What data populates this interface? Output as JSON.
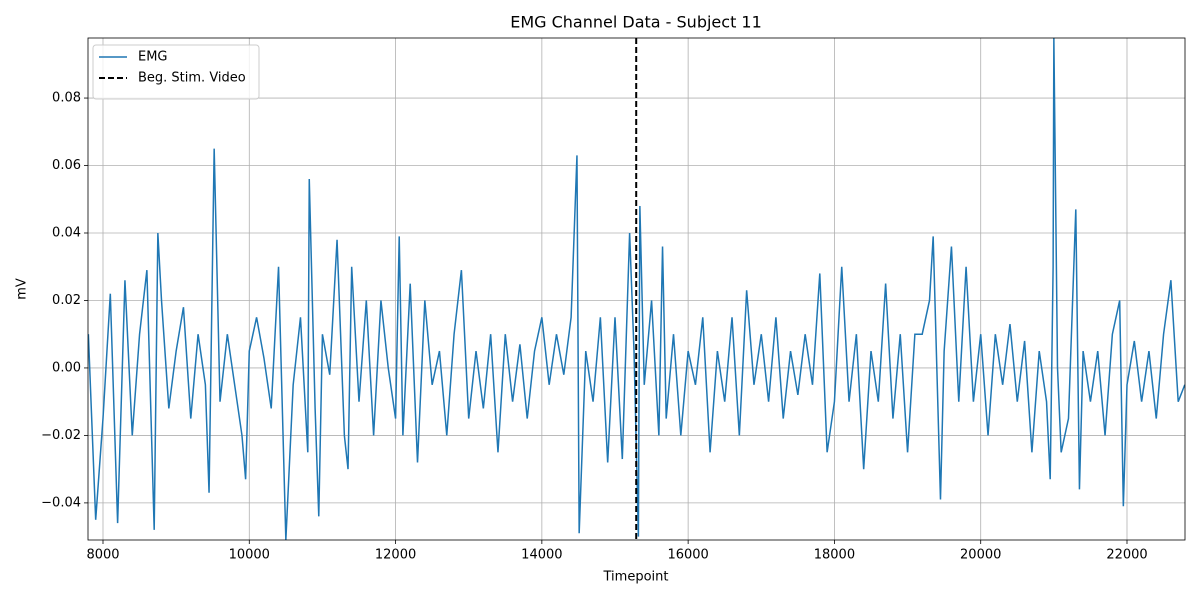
{
  "chart_data": {
    "type": "line",
    "title": "EMG Channel Data - Subject 11",
    "xlabel": "Timepoint",
    "ylabel": "mV",
    "xlim": [
      7795,
      22793
    ],
    "ylim": [
      -0.051,
      0.0978
    ],
    "xticks": [
      8000,
      10000,
      12000,
      14000,
      16000,
      18000,
      20000,
      22000
    ],
    "yticks": [
      {
        "value": -0.04,
        "label": "−0.04"
      },
      {
        "value": -0.02,
        "label": "−0.02"
      },
      {
        "value": 0,
        "label": "0.00"
      },
      0.02,
      0.04,
      0.06,
      0.08
    ],
    "grid": true,
    "legend": "upper left",
    "x": [
      7800,
      7900,
      8000,
      8100,
      8200,
      8300,
      8400,
      8500,
      8600,
      8700,
      8750,
      8800,
      8900,
      9000,
      9100,
      9200,
      9300,
      9400,
      9450,
      9520,
      9600,
      9700,
      9800,
      9900,
      9950,
      10000,
      10100,
      10200,
      10300,
      10400,
      10500,
      10600,
      10700,
      10800,
      10820,
      10900,
      10950,
      11000,
      11100,
      11200,
      11300,
      11350,
      11400,
      11500,
      11600,
      11700,
      11800,
      11900,
      12000,
      12050,
      12100,
      12200,
      12300,
      12400,
      12500,
      12600,
      12700,
      12800,
      12900,
      13000,
      13100,
      13200,
      13300,
      13400,
      13500,
      13600,
      13700,
      13800,
      13900,
      14000,
      14100,
      14200,
      14300,
      14400,
      14480,
      14510,
      14600,
      14700,
      14800,
      14900,
      15000,
      15100,
      15200,
      15260,
      15320,
      15340,
      15400,
      15500,
      15600,
      15650,
      15700,
      15800,
      15900,
      16000,
      16100,
      16200,
      16300,
      16400,
      16500,
      16600,
      16700,
      16800,
      16900,
      17000,
      17100,
      17200,
      17300,
      17400,
      17500,
      17600,
      17700,
      17800,
      17900,
      18000,
      18100,
      18200,
      18300,
      18400,
      18500,
      18600,
      18700,
      18800,
      18900,
      19000,
      19100,
      19200,
      19300,
      19350,
      19450,
      19500,
      19600,
      19700,
      19800,
      19900,
      20000,
      20100,
      20200,
      20300,
      20400,
      20500,
      20600,
      20700,
      20800,
      20900,
      20950,
      20990,
      21000,
      21050,
      21100,
      21200,
      21300,
      21350,
      21400,
      21500,
      21600,
      21700,
      21800,
      21900,
      21950,
      22000,
      22100,
      22200,
      22300,
      22400,
      22500,
      22600,
      22700,
      22790
    ],
    "series": [
      {
        "name": "EMG",
        "color": "#1f77b4",
        "values": [
          0.01,
          -0.045,
          -0.015,
          0.022,
          -0.046,
          0.026,
          -0.02,
          0.01,
          0.029,
          -0.048,
          0.04,
          0.02,
          -0.012,
          0.005,
          0.018,
          -0.015,
          0.01,
          -0.005,
          -0.037,
          0.065,
          -0.01,
          0.01,
          -0.005,
          -0.02,
          -0.033,
          0.005,
          0.015,
          0.003,
          -0.012,
          0.03,
          -0.051,
          -0.005,
          0.015,
          -0.025,
          0.056,
          -0.012,
          -0.044,
          0.01,
          -0.002,
          0.038,
          -0.02,
          -0.03,
          0.03,
          -0.01,
          0.02,
          -0.02,
          0.02,
          0.0,
          -0.015,
          0.039,
          -0.02,
          0.025,
          -0.028,
          0.02,
          -0.005,
          0.005,
          -0.02,
          0.01,
          0.029,
          -0.015,
          0.005,
          -0.012,
          0.01,
          -0.025,
          0.01,
          -0.01,
          0.007,
          -0.015,
          0.005,
          0.015,
          -0.005,
          0.01,
          -0.002,
          0.015,
          0.063,
          -0.049,
          0.005,
          -0.01,
          0.015,
          -0.028,
          0.015,
          -0.027,
          0.04,
          0.005,
          -0.05,
          0.048,
          -0.005,
          0.02,
          -0.02,
          0.036,
          -0.015,
          0.01,
          -0.02,
          0.005,
          -0.005,
          0.015,
          -0.025,
          0.005,
          -0.01,
          0.015,
          -0.02,
          0.023,
          -0.005,
          0.01,
          -0.01,
          0.015,
          -0.015,
          0.005,
          -0.008,
          0.01,
          -0.005,
          0.028,
          -0.025,
          -0.01,
          0.03,
          -0.01,
          0.01,
          -0.03,
          0.005,
          -0.01,
          0.025,
          -0.015,
          0.01,
          -0.025,
          0.01,
          0.01,
          0.02,
          0.039,
          -0.039,
          0.005,
          0.036,
          -0.01,
          0.03,
          -0.01,
          0.01,
          -0.02,
          0.01,
          -0.005,
          0.013,
          -0.01,
          0.008,
          -0.025,
          0.005,
          -0.01,
          -0.033,
          0.03,
          0.098,
          0.0,
          -0.025,
          -0.015,
          0.047,
          -0.036,
          0.005,
          -0.01,
          0.005,
          -0.02,
          0.01,
          0.02,
          -0.041,
          -0.005,
          0.008,
          -0.01,
          0.005,
          -0.015,
          0.01,
          0.026,
          -0.01,
          -0.005
        ]
      }
    ],
    "vlines": [
      {
        "name": "Beg. Stim. Video",
        "x": 15290,
        "color": "#000000",
        "style": "dashed"
      }
    ]
  }
}
